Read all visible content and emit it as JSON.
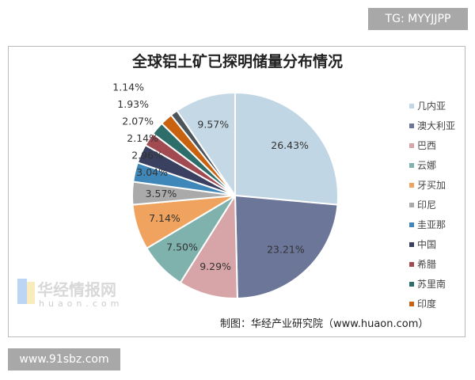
{
  "badges": {
    "tg": "TG: MYYJJPP",
    "site": "www.91sbz.com"
  },
  "watermark": {
    "text": "华经情报网",
    "sub": "huaon.com"
  },
  "chart_data": {
    "type": "pie",
    "title": "全球铝土矿已探明储量分布情况",
    "source": "制图：华经产业研究院（www.huaon.com）",
    "start": "top",
    "direction": "clockwise",
    "legend_position": "right",
    "slices": [
      {
        "name": "几内亚",
        "value": 26.43,
        "label": "26.43%",
        "color": "#c0d6e4"
      },
      {
        "name": "澳大利亚",
        "value": 23.21,
        "label": "23.21%",
        "color": "#6b7699"
      },
      {
        "name": "巴西",
        "value": 9.29,
        "label": "9.29%",
        "color": "#d7a5a8"
      },
      {
        "name": "云娜",
        "value": 7.5,
        "label": "7.50%",
        "color": "#7fb2ad"
      },
      {
        "name": "牙买加",
        "value": 7.14,
        "label": "7.14%",
        "color": "#f0a35e"
      },
      {
        "name": "印尼",
        "value": 3.57,
        "label": "3.57%",
        "color": "#a9aaa9"
      },
      {
        "name": "圭亚那",
        "value": 3.04,
        "label": "3.04%",
        "color": "#3e87b8"
      },
      {
        "name": "中国",
        "value": 2.96,
        "label": "2.96%",
        "color": "#3a4060"
      },
      {
        "name": "希腊",
        "value": 2.14,
        "label": "2.14%",
        "color": "#a24a52"
      },
      {
        "name": "苏里南",
        "value": 2.07,
        "label": "2.07%",
        "color": "#2e6e6a"
      },
      {
        "name": "印度",
        "value": 1.93,
        "label": "1.93%",
        "color": "#c9620f"
      },
      {
        "name": "",
        "value": 1.14,
        "label": "1.14%",
        "color": "#4c545c"
      },
      {
        "name": "",
        "value": 9.57,
        "label": "9.57%",
        "color": "#c4d8e6"
      }
    ]
  }
}
